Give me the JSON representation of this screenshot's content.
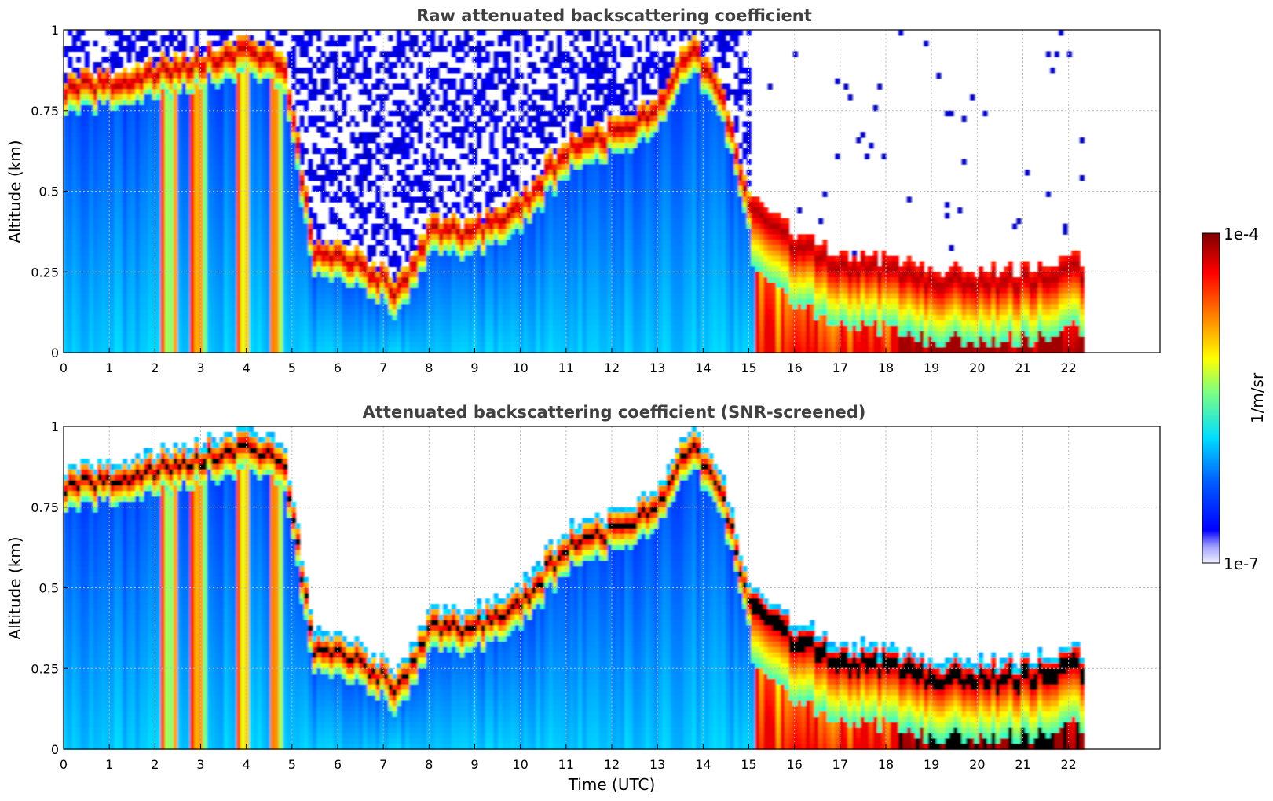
{
  "chart_data": [
    {
      "type": "heatmap",
      "title": "Raw attenuated backscattering coefficient",
      "xlabel": "",
      "ylabel": "Altitude (km)",
      "xlim": [
        0,
        24
      ],
      "ylim": [
        0,
        1
      ],
      "x_ticks": [
        "0",
        "1",
        "2",
        "3",
        "4",
        "5",
        "6",
        "7",
        "8",
        "9",
        "10",
        "11",
        "12",
        "13",
        "14",
        "15",
        "16",
        "17",
        "18",
        "19",
        "20",
        "21",
        "22"
      ],
      "y_ticks": [
        "0",
        "0.25",
        "0.5",
        "0.75",
        "1"
      ],
      "grid": true,
      "data_end_hour": 22.3,
      "scale": "log",
      "colormap": "jet",
      "colorbar_range": [
        "1e-7",
        "1e-4"
      ],
      "peak_layer_altitude_km": [
        [
          0,
          0.81
        ],
        [
          1,
          0.83
        ],
        [
          2,
          0.86
        ],
        [
          3,
          0.9
        ],
        [
          4,
          0.93
        ],
        [
          4.8,
          0.9
        ],
        [
          5.5,
          0.3
        ],
        [
          6.5,
          0.28
        ],
        [
          7.3,
          0.18
        ],
        [
          8,
          0.37
        ],
        [
          9,
          0.37
        ],
        [
          10,
          0.45
        ],
        [
          11,
          0.62
        ],
        [
          12,
          0.68
        ],
        [
          13,
          0.75
        ],
        [
          13.8,
          0.95
        ],
        [
          14.5,
          0.75
        ],
        [
          15,
          0.45
        ],
        [
          16,
          0.33
        ],
        [
          17,
          0.27
        ],
        [
          18,
          0.25
        ],
        [
          19,
          0.22
        ],
        [
          20,
          0.22
        ],
        [
          21,
          0.22
        ],
        [
          22,
          0.25
        ]
      ]
    },
    {
      "type": "heatmap",
      "title": "Attenuated backscattering coefficient (SNR-screened)",
      "xlabel": "Time (UTC)",
      "ylabel": "Altitude (km)",
      "xlim": [
        0,
        24
      ],
      "ylim": [
        0,
        1
      ],
      "x_ticks": [
        "0",
        "1",
        "2",
        "3",
        "4",
        "5",
        "6",
        "7",
        "8",
        "9",
        "10",
        "11",
        "12",
        "13",
        "14",
        "15",
        "16",
        "17",
        "18",
        "19",
        "20",
        "21",
        "22"
      ],
      "y_ticks": [
        "0",
        "0.25",
        "0.5",
        "0.75",
        "1"
      ],
      "grid": true,
      "data_end_hour": 22.3,
      "scale": "log",
      "colormap": "jet",
      "saturated_color": "#000000"
    }
  ],
  "colorbar": {
    "label": "1/m/sr",
    "max_label": "1e-4",
    "min_label": "1e-7"
  }
}
